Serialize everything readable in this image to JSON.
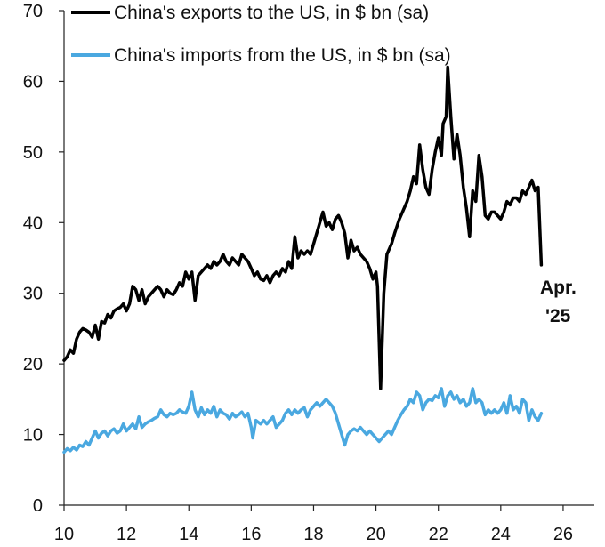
{
  "chart_data": {
    "type": "line",
    "title": "",
    "xlabel": "",
    "ylabel": "",
    "xlim": [
      10,
      27
    ],
    "ylim": [
      0,
      70
    ],
    "x_ticks": [
      10,
      12,
      14,
      16,
      18,
      20,
      22,
      24,
      26
    ],
    "y_ticks": [
      0,
      10,
      20,
      30,
      40,
      50,
      60,
      70
    ],
    "grid": false,
    "legend_position": "top-left",
    "annotation": {
      "line1": "Apr.",
      "line2": "'25"
    },
    "series": [
      {
        "name": "China's exports to the US, in $ bn (sa)",
        "color": "#000000",
        "points": [
          [
            10.0,
            20.5
          ],
          [
            10.1,
            21.0
          ],
          [
            10.2,
            22.0
          ],
          [
            10.3,
            21.5
          ],
          [
            10.4,
            23.5
          ],
          [
            10.5,
            24.5
          ],
          [
            10.6,
            25.0
          ],
          [
            10.7,
            24.8
          ],
          [
            10.8,
            24.5
          ],
          [
            10.9,
            23.8
          ],
          [
            11.0,
            25.5
          ],
          [
            11.1,
            23.5
          ],
          [
            11.2,
            26.0
          ],
          [
            11.3,
            25.8
          ],
          [
            11.4,
            27.0
          ],
          [
            11.5,
            26.5
          ],
          [
            11.6,
            27.5
          ],
          [
            11.7,
            27.8
          ],
          [
            11.8,
            28.0
          ],
          [
            11.9,
            28.5
          ],
          [
            12.0,
            27.5
          ],
          [
            12.1,
            28.5
          ],
          [
            12.2,
            31.0
          ],
          [
            12.3,
            30.5
          ],
          [
            12.4,
            29.0
          ],
          [
            12.5,
            30.5
          ],
          [
            12.6,
            28.5
          ],
          [
            12.7,
            29.5
          ],
          [
            12.8,
            30.0
          ],
          [
            12.9,
            30.5
          ],
          [
            13.0,
            31.0
          ],
          [
            13.1,
            30.5
          ],
          [
            13.2,
            29.5
          ],
          [
            13.3,
            30.5
          ],
          [
            13.4,
            30.0
          ],
          [
            13.5,
            29.8
          ],
          [
            13.6,
            30.5
          ],
          [
            13.7,
            31.5
          ],
          [
            13.8,
            31.0
          ],
          [
            13.9,
            33.0
          ],
          [
            14.0,
            32.0
          ],
          [
            14.1,
            33.0
          ],
          [
            14.2,
            29.0
          ],
          [
            14.3,
            32.5
          ],
          [
            14.4,
            33.0
          ],
          [
            14.5,
            33.5
          ],
          [
            14.6,
            34.0
          ],
          [
            14.7,
            33.5
          ],
          [
            14.8,
            34.5
          ],
          [
            14.9,
            34.0
          ],
          [
            15.0,
            34.5
          ],
          [
            15.1,
            35.5
          ],
          [
            15.2,
            34.5
          ],
          [
            15.3,
            34.0
          ],
          [
            15.4,
            35.0
          ],
          [
            15.5,
            34.5
          ],
          [
            15.6,
            34.0
          ],
          [
            15.7,
            35.5
          ],
          [
            15.8,
            35.0
          ],
          [
            15.9,
            34.5
          ],
          [
            16.0,
            33.5
          ],
          [
            16.1,
            32.5
          ],
          [
            16.2,
            33.0
          ],
          [
            16.3,
            32.0
          ],
          [
            16.4,
            31.8
          ],
          [
            16.5,
            32.5
          ],
          [
            16.6,
            31.5
          ],
          [
            16.7,
            32.5
          ],
          [
            16.8,
            33.0
          ],
          [
            16.9,
            32.5
          ],
          [
            17.0,
            33.5
          ],
          [
            17.1,
            33.0
          ],
          [
            17.2,
            34.5
          ],
          [
            17.3,
            33.5
          ],
          [
            17.4,
            38.0
          ],
          [
            17.5,
            35.0
          ],
          [
            17.6,
            36.0
          ],
          [
            17.7,
            35.5
          ],
          [
            17.8,
            36.0
          ],
          [
            17.9,
            35.5
          ],
          [
            18.0,
            37.0
          ],
          [
            18.1,
            38.5
          ],
          [
            18.2,
            40.0
          ],
          [
            18.3,
            41.5
          ],
          [
            18.4,
            39.5
          ],
          [
            18.5,
            40.0
          ],
          [
            18.6,
            39.0
          ],
          [
            18.7,
            40.5
          ],
          [
            18.8,
            41.0
          ],
          [
            18.9,
            40.0
          ],
          [
            19.0,
            38.5
          ],
          [
            19.1,
            35.0
          ],
          [
            19.2,
            37.5
          ],
          [
            19.3,
            36.0
          ],
          [
            19.4,
            36.5
          ],
          [
            19.5,
            35.5
          ],
          [
            19.6,
            35.0
          ],
          [
            19.7,
            34.5
          ],
          [
            19.8,
            33.5
          ],
          [
            19.9,
            32.0
          ],
          [
            20.0,
            33.0
          ],
          [
            20.05,
            31.0
          ],
          [
            20.15,
            16.5
          ],
          [
            20.25,
            30.0
          ],
          [
            20.35,
            35.5
          ],
          [
            20.5,
            37.0
          ],
          [
            20.6,
            38.5
          ],
          [
            20.75,
            40.5
          ],
          [
            20.9,
            42.0
          ],
          [
            21.0,
            43.0
          ],
          [
            21.1,
            44.5
          ],
          [
            21.2,
            46.5
          ],
          [
            21.3,
            45.5
          ],
          [
            21.4,
            51.0
          ],
          [
            21.5,
            47.5
          ],
          [
            21.6,
            45.0
          ],
          [
            21.7,
            44.0
          ],
          [
            21.8,
            47.5
          ],
          [
            21.9,
            50.0
          ],
          [
            22.0,
            52.0
          ],
          [
            22.1,
            49.5
          ],
          [
            22.15,
            54.0
          ],
          [
            22.25,
            55.0
          ],
          [
            22.3,
            62.0
          ],
          [
            22.4,
            55.0
          ],
          [
            22.5,
            49.0
          ],
          [
            22.6,
            52.5
          ],
          [
            22.7,
            49.5
          ],
          [
            22.8,
            45.0
          ],
          [
            22.9,
            42.0
          ],
          [
            23.0,
            38.0
          ],
          [
            23.1,
            44.5
          ],
          [
            23.2,
            43.0
          ],
          [
            23.3,
            49.5
          ],
          [
            23.4,
            46.5
          ],
          [
            23.5,
            41.0
          ],
          [
            23.6,
            40.5
          ],
          [
            23.7,
            41.5
          ],
          [
            23.8,
            41.5
          ],
          [
            23.9,
            41.0
          ],
          [
            24.0,
            40.5
          ],
          [
            24.1,
            41.5
          ],
          [
            24.2,
            43.0
          ],
          [
            24.3,
            42.5
          ],
          [
            24.4,
            43.5
          ],
          [
            24.5,
            43.5
          ],
          [
            24.6,
            43.0
          ],
          [
            24.7,
            44.5
          ],
          [
            24.8,
            44.0
          ],
          [
            24.9,
            45.0
          ],
          [
            25.0,
            46.0
          ],
          [
            25.1,
            44.5
          ],
          [
            25.2,
            45.0
          ],
          [
            25.3,
            34.0
          ]
        ]
      },
      {
        "name": "China's imports from the US, in $ bn (sa)",
        "color": "#4aa8e0",
        "points": [
          [
            10.0,
            7.5
          ],
          [
            10.1,
            8.0
          ],
          [
            10.2,
            7.7
          ],
          [
            10.3,
            8.2
          ],
          [
            10.4,
            7.8
          ],
          [
            10.5,
            8.5
          ],
          [
            10.6,
            8.3
          ],
          [
            10.7,
            9.0
          ],
          [
            10.8,
            8.5
          ],
          [
            10.9,
            9.5
          ],
          [
            11.0,
            10.5
          ],
          [
            11.1,
            9.5
          ],
          [
            11.2,
            10.2
          ],
          [
            11.3,
            10.5
          ],
          [
            11.4,
            9.8
          ],
          [
            11.5,
            10.5
          ],
          [
            11.6,
            10.8
          ],
          [
            11.7,
            10.2
          ],
          [
            11.8,
            10.5
          ],
          [
            11.9,
            11.5
          ],
          [
            12.0,
            10.5
          ],
          [
            12.1,
            11.0
          ],
          [
            12.2,
            11.5
          ],
          [
            12.3,
            10.8
          ],
          [
            12.4,
            12.5
          ],
          [
            12.5,
            11.0
          ],
          [
            12.6,
            11.5
          ],
          [
            12.7,
            11.8
          ],
          [
            12.8,
            12.0
          ],
          [
            12.9,
            12.3
          ],
          [
            13.0,
            12.5
          ],
          [
            13.1,
            13.5
          ],
          [
            13.2,
            12.8
          ],
          [
            13.3,
            12.5
          ],
          [
            13.4,
            13.0
          ],
          [
            13.5,
            12.8
          ],
          [
            13.6,
            13.0
          ],
          [
            13.7,
            13.5
          ],
          [
            13.8,
            13.2
          ],
          [
            13.9,
            13.0
          ],
          [
            14.0,
            14.0
          ],
          [
            14.1,
            16.0
          ],
          [
            14.2,
            13.5
          ],
          [
            14.3,
            12.5
          ],
          [
            14.4,
            13.8
          ],
          [
            14.5,
            12.8
          ],
          [
            14.6,
            13.5
          ],
          [
            14.7,
            13.0
          ],
          [
            14.8,
            14.0
          ],
          [
            14.9,
            12.5
          ],
          [
            15.0,
            13.5
          ],
          [
            15.1,
            13.0
          ],
          [
            15.2,
            12.8
          ],
          [
            15.3,
            12.2
          ],
          [
            15.4,
            13.0
          ],
          [
            15.5,
            12.5
          ],
          [
            15.6,
            12.8
          ],
          [
            15.7,
            13.2
          ],
          [
            15.8,
            12.5
          ],
          [
            15.9,
            13.0
          ],
          [
            16.0,
            11.0
          ],
          [
            16.05,
            9.5
          ],
          [
            16.15,
            12.0
          ],
          [
            16.3,
            11.5
          ],
          [
            16.4,
            12.0
          ],
          [
            16.5,
            11.5
          ],
          [
            16.6,
            12.0
          ],
          [
            16.7,
            12.5
          ],
          [
            16.8,
            11.0
          ],
          [
            16.9,
            11.5
          ],
          [
            17.0,
            12.0
          ],
          [
            17.1,
            13.0
          ],
          [
            17.2,
            13.5
          ],
          [
            17.3,
            12.8
          ],
          [
            17.4,
            13.5
          ],
          [
            17.5,
            13.0
          ],
          [
            17.6,
            13.5
          ],
          [
            17.7,
            13.8
          ],
          [
            17.8,
            12.5
          ],
          [
            17.9,
            13.5
          ],
          [
            18.0,
            14.0
          ],
          [
            18.1,
            14.5
          ],
          [
            18.2,
            14.0
          ],
          [
            18.3,
            14.5
          ],
          [
            18.4,
            15.0
          ],
          [
            18.5,
            14.5
          ],
          [
            18.6,
            14.0
          ],
          [
            18.7,
            13.0
          ],
          [
            18.8,
            11.5
          ],
          [
            18.9,
            10.0
          ],
          [
            19.0,
            8.5
          ],
          [
            19.1,
            10.0
          ],
          [
            19.2,
            10.5
          ],
          [
            19.3,
            10.8
          ],
          [
            19.4,
            10.5
          ],
          [
            19.5,
            11.0
          ],
          [
            19.6,
            10.5
          ],
          [
            19.7,
            10.0
          ],
          [
            19.8,
            10.5
          ],
          [
            19.9,
            10.0
          ],
          [
            20.0,
            9.5
          ],
          [
            20.1,
            9.0
          ],
          [
            20.2,
            9.5
          ],
          [
            20.3,
            10.0
          ],
          [
            20.4,
            10.5
          ],
          [
            20.5,
            10.0
          ],
          [
            20.6,
            11.0
          ],
          [
            20.7,
            12.0
          ],
          [
            20.8,
            12.8
          ],
          [
            20.9,
            13.5
          ],
          [
            21.0,
            14.0
          ],
          [
            21.1,
            15.0
          ],
          [
            21.2,
            14.5
          ],
          [
            21.3,
            16.0
          ],
          [
            21.4,
            15.5
          ],
          [
            21.5,
            13.5
          ],
          [
            21.6,
            14.5
          ],
          [
            21.7,
            15.0
          ],
          [
            21.8,
            14.8
          ],
          [
            21.9,
            15.5
          ],
          [
            22.0,
            15.2
          ],
          [
            22.1,
            16.5
          ],
          [
            22.2,
            14.0
          ],
          [
            22.3,
            15.5
          ],
          [
            22.4,
            16.0
          ],
          [
            22.5,
            15.0
          ],
          [
            22.6,
            15.5
          ],
          [
            22.7,
            14.5
          ],
          [
            22.8,
            15.0
          ],
          [
            22.9,
            14.0
          ],
          [
            23.0,
            14.5
          ],
          [
            23.1,
            16.5
          ],
          [
            23.2,
            14.5
          ],
          [
            23.3,
            15.0
          ],
          [
            23.4,
            14.5
          ],
          [
            23.5,
            12.8
          ],
          [
            23.6,
            13.5
          ],
          [
            23.7,
            13.0
          ],
          [
            23.8,
            13.5
          ],
          [
            23.9,
            13.0
          ],
          [
            24.0,
            13.5
          ],
          [
            24.1,
            14.5
          ],
          [
            24.2,
            13.0
          ],
          [
            24.3,
            15.5
          ],
          [
            24.4,
            13.5
          ],
          [
            24.5,
            14.0
          ],
          [
            24.6,
            13.0
          ],
          [
            24.7,
            15.0
          ],
          [
            24.8,
            14.5
          ],
          [
            24.9,
            12.0
          ],
          [
            25.0,
            13.5
          ],
          [
            25.1,
            12.5
          ],
          [
            25.2,
            12.0
          ],
          [
            25.3,
            13.0
          ]
        ]
      }
    ]
  }
}
